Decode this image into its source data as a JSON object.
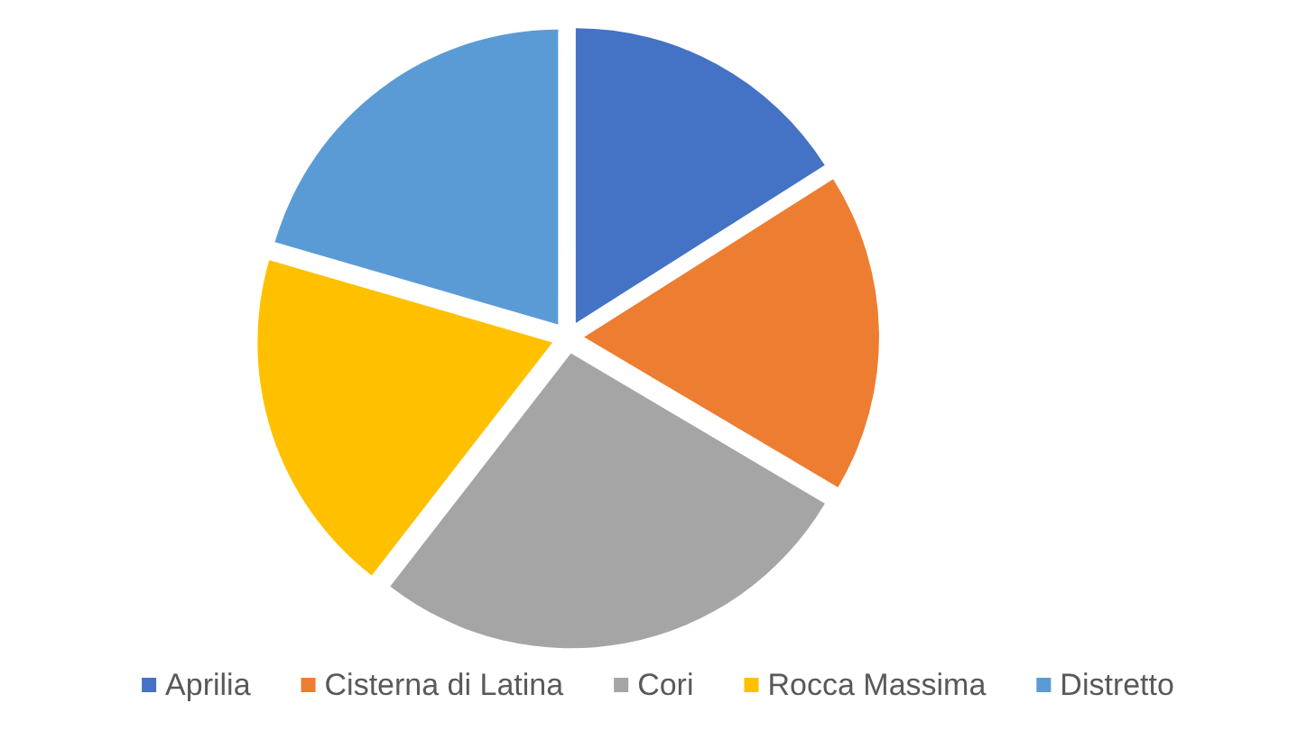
{
  "chart_data": {
    "type": "pie",
    "categories": [
      "Aprilia",
      "Cisterna di Latina",
      "Cori",
      "Rocca Massima",
      "Distretto"
    ],
    "values": [
      16,
      17.5,
      27,
      19,
      20.5
    ],
    "colors": [
      "#4472c4",
      "#ed7d31",
      "#a5a5a5",
      "#ffc000",
      "#5b9bd5"
    ],
    "legend": "bottom"
  }
}
